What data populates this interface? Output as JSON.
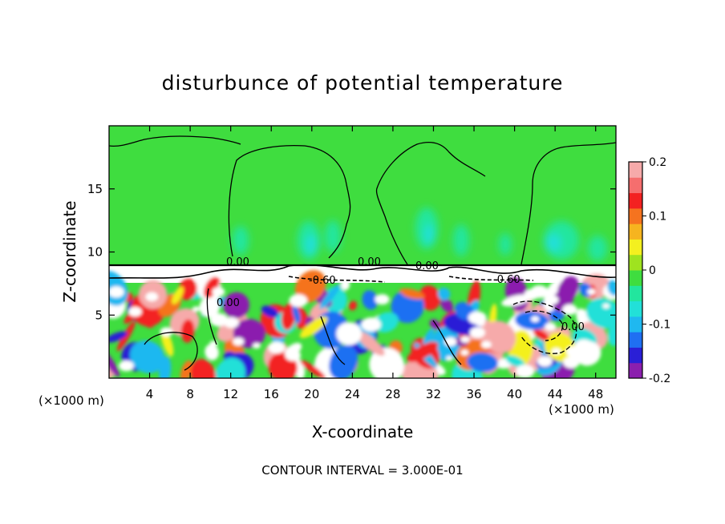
{
  "chart_data": {
    "type": "heatmap",
    "title": "disturbunce of potential temperature",
    "xlabel": "X-coordinate",
    "ylabel": "Z-coordinate",
    "x_unit_label": "(×1000 m)",
    "x_unit_label_right": "(×1000 m)",
    "footer": "CONTOUR INTERVAL = 3.000E-01",
    "xlim": [
      0,
      50
    ],
    "ylim": [
      0,
      20
    ],
    "x_ticks": [
      4,
      8,
      12,
      16,
      20,
      24,
      28,
      32,
      36,
      40,
      44,
      48
    ],
    "y_ticks": [
      5,
      10,
      15
    ],
    "colorbar": {
      "range": [
        -0.2,
        0.2
      ],
      "tick_values": [
        0.2,
        0.1,
        0,
        -0.1,
        -0.2
      ],
      "tick_labels": [
        "0.2",
        "0.1",
        "0",
        "-0.1",
        "-0.2"
      ],
      "colors": [
        "#8b1fae",
        "#2a1fd6",
        "#1f6ff2",
        "#1fb8f0",
        "#22e0d8",
        "#22e69e",
        "#3fdd3f",
        "#9fe31f",
        "#f4f01f",
        "#f6b41f",
        "#f5731f",
        "#f32121",
        "#f56e6e",
        "#f6aaaa"
      ]
    },
    "contour_labels": [
      "0.00",
      "0.00",
      "0.00",
      "-0.60",
      "-0.60",
      "0.00",
      "0.00"
    ],
    "background_value": 0,
    "regions": [
      {
        "zone": "upper",
        "z_range": [
          9,
          20
        ],
        "value": 0
      },
      {
        "zone": "inversion",
        "z_range": [
          7.6,
          9
        ],
        "value": "white"
      },
      {
        "zone": "lower",
        "z_range": [
          0,
          7.6
        ],
        "value": "turbulent"
      }
    ]
  }
}
